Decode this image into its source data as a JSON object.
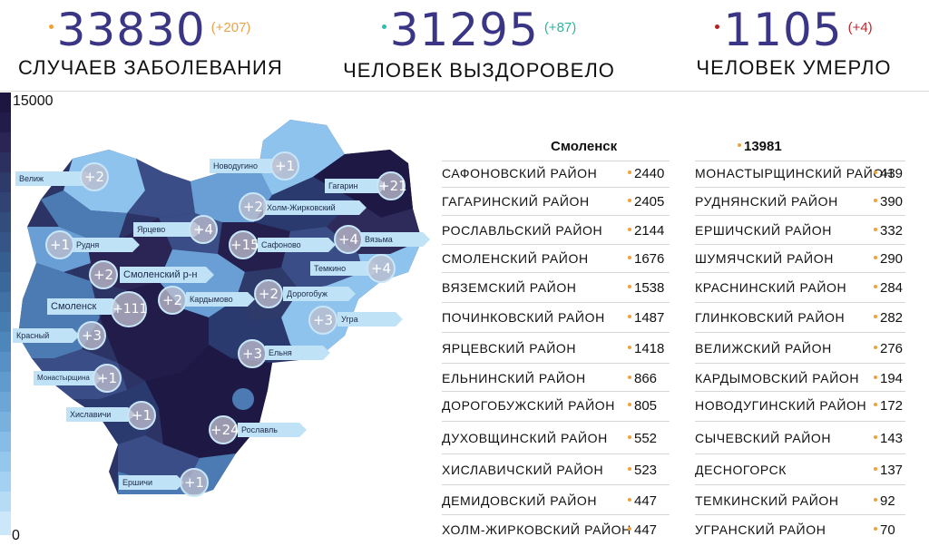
{
  "stats": {
    "cases": {
      "value": "33830",
      "delta": "(+207)",
      "label": "СЛУЧАЕВ ЗАБОЛЕВАНИЯ",
      "dot_color": "#f0a13a",
      "delta_color": "#e8a34d"
    },
    "recovered": {
      "value": "31295",
      "delta": "(+87)",
      "label": "ЧЕЛОВЕК ВЫЗДОРОВЕЛО",
      "dot_color": "#2bbfb0",
      "delta_color": "#2fb59f"
    },
    "deaths": {
      "value": "1105",
      "delta": "(+4)",
      "label": "ЧЕЛОВЕК УМЕРЛО",
      "dot_color": "#b52020",
      "delta_color": "#c0262c"
    }
  },
  "scale": {
    "max_label": "15000",
    "min_label": "0"
  },
  "map": {
    "districts": [
      {
        "name": "Велиж",
        "delta": "+2"
      },
      {
        "name": "Новодугино",
        "delta": "+1"
      },
      {
        "name": "Гагарин",
        "delta": "+21"
      },
      {
        "name": "Холм-Жирковский",
        "delta": "+2"
      },
      {
        "name": "Ярцево",
        "delta": "+4"
      },
      {
        "name": "Вязьма",
        "delta": "+4"
      },
      {
        "name": "Рудня",
        "delta": "+1"
      },
      {
        "name": "Сафоново",
        "delta": "+15"
      },
      {
        "name": "Темкино",
        "delta": "+4"
      },
      {
        "name": "Смоленский р-н",
        "delta": "+2"
      },
      {
        "name": "Кардымово",
        "delta": "+2"
      },
      {
        "name": "Дорогобуж",
        "delta": "+2"
      },
      {
        "name": "Смоленск",
        "delta": "+111"
      },
      {
        "name": "Угра",
        "delta": "+3"
      },
      {
        "name": "Красный",
        "delta": "+3"
      },
      {
        "name": "Ельня",
        "delta": "+3"
      },
      {
        "name": "Монастырщина",
        "delta": "+1"
      },
      {
        "name": "Хиславичи",
        "delta": "+1"
      },
      {
        "name": "Рославль",
        "delta": "+24"
      },
      {
        "name": "Ершичи",
        "delta": "+1"
      }
    ]
  },
  "table": {
    "header": {
      "name": "Смоленск",
      "value": "13981"
    },
    "left": [
      {
        "name": "САФОНОВСКИЙ РАЙОН",
        "value": "2440"
      },
      {
        "name": "ГАГАРИНСКИЙ РАЙОН",
        "value": "2405"
      },
      {
        "name": "РОСЛАВЛЬСКИЙ РАЙОН",
        "value": "2144"
      },
      {
        "name": "СМОЛЕНСКИЙ РАЙОН",
        "value": "1676"
      },
      {
        "name": "ВЯЗЕМСКИЙ РАЙОН",
        "value": "1538"
      },
      {
        "name": "ПОЧИНКОВСКИЙ РАЙОН",
        "value": "1487"
      },
      {
        "name": "ЯРЦЕВСКИЙ РАЙОН",
        "value": "1418"
      },
      {
        "name": "ЕЛЬНИНСКИЙ РАЙОН",
        "value": "866"
      },
      {
        "name": "ДОРОГОБУЖСКИЙ РАЙОН",
        "value": "805"
      },
      {
        "name": "ДУХОВЩИНСКИЙ РАЙОН",
        "value": "552"
      },
      {
        "name": "ХИСЛАВИЧСКИЙ РАЙОН",
        "value": "523"
      },
      {
        "name": "ДЕМИДОВСКИЙ РАЙОН",
        "value": "447"
      },
      {
        "name": "ХОЛМ-ЖИРКОВСКИЙ РАЙОН",
        "value": "447"
      }
    ],
    "right": [
      {
        "name": "МОНАСТЫРЩИНСКИЙ РАЙОН",
        "value": "439"
      },
      {
        "name": "РУДНЯНСКИЙ РАЙОН",
        "value": "390"
      },
      {
        "name": "ЕРШИЧСКИЙ РАЙОН",
        "value": "332"
      },
      {
        "name": "ШУМЯЧСКИЙ РАЙОН",
        "value": "290"
      },
      {
        "name": "КРАСНИНСКИЙ РАЙОН",
        "value": "284"
      },
      {
        "name": "ГЛИНКОВСКИЙ РАЙОН",
        "value": "282"
      },
      {
        "name": "ВЕЛИЖСКИЙ РАЙОН",
        "value": "276"
      },
      {
        "name": "КАРДЫМОВСКИЙ РАЙОН",
        "value": "194"
      },
      {
        "name": "НОВОДУГИНСКИЙ РАЙОН",
        "value": "172"
      },
      {
        "name": "СЫЧЕВСКИЙ РАЙОН",
        "value": "143"
      },
      {
        "name": "ДЕСНОГОРСК",
        "value": "137"
      },
      {
        "name": "ТЕМКИНСКИЙ РАЙОН",
        "value": "92"
      },
      {
        "name": "УГРАНСКИЙ РАЙОН",
        "value": "70"
      }
    ]
  },
  "colors": {
    "number": "#3a3585",
    "dark": "#1e1845",
    "navy": "#2b3a6e",
    "steel": "#4c7ab3",
    "light": "#8ec3ee",
    "pale": "#bfe2f6"
  }
}
